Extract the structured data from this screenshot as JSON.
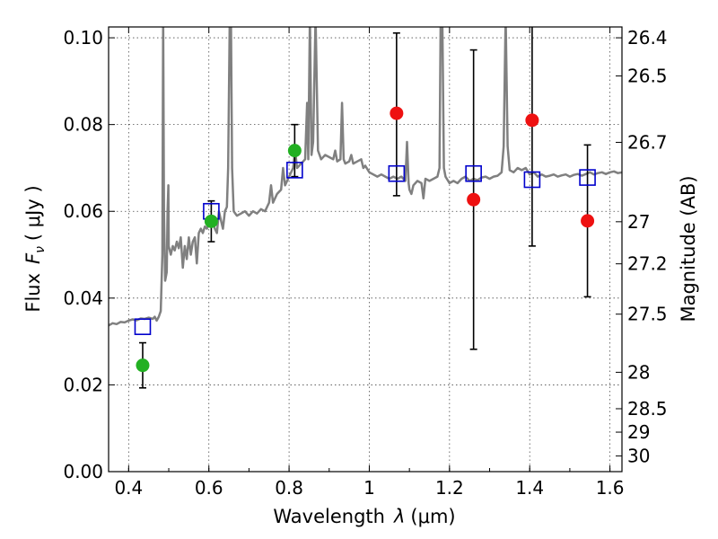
{
  "chart_data": {
    "type": "scatter",
    "xlabel": "Wavelength",
    "xlabel_symbol": "λ",
    "xlabel_unit": "(μm)",
    "ylabel": "Flux",
    "ylabel_symbol": "F",
    "ylabel_subscript": "ν",
    "ylabel_unit": "( μJy )",
    "y2label": "Magnitude (AB)",
    "xlim": [
      0.35,
      1.63
    ],
    "ylim": [
      0.0,
      0.1025
    ],
    "grid": true,
    "x_ticks": [
      0.4,
      0.6,
      0.8,
      1.0,
      1.2,
      1.4,
      1.6
    ],
    "x_tick_labels": [
      "0.4",
      "0.6",
      "0.8",
      "1",
      "1.2",
      "1.4",
      "1.6"
    ],
    "y_ticks": [
      0.0,
      0.02,
      0.04,
      0.06,
      0.08,
      0.1
    ],
    "y_tick_labels": [
      "0.00",
      "0.02",
      "0.04",
      "0.06",
      "0.08",
      "0.10"
    ],
    "y2_ticks": [
      {
        "label": "26.4",
        "flux": 0.1
      },
      {
        "label": "26.5",
        "flux": 0.0912
      },
      {
        "label": "26.7",
        "flux": 0.0759
      },
      {
        "label": "27",
        "flux": 0.0576
      },
      {
        "label": "27.2",
        "flux": 0.0479
      },
      {
        "label": "27.5",
        "flux": 0.0363
      },
      {
        "label": "28",
        "flux": 0.0229
      },
      {
        "label": "28.5",
        "flux": 0.0145
      },
      {
        "label": "29",
        "flux": 0.0091
      },
      {
        "label": "30",
        "flux": 0.0036
      }
    ],
    "series": [
      {
        "name": "green detections",
        "marker": "circle",
        "color": "#22b022",
        "points": [
          {
            "x": 0.435,
            "y": 0.0245,
            "err_low": 0.0052,
            "err_high": 0.0052
          },
          {
            "x": 0.606,
            "y": 0.0577,
            "err_low": 0.0047,
            "err_high": 0.0047
          },
          {
            "x": 0.814,
            "y": 0.074,
            "err_low": 0.006,
            "err_high": 0.006
          }
        ]
      },
      {
        "name": "red detections",
        "marker": "circle",
        "color": "#ee1111",
        "points": [
          {
            "x": 1.068,
            "y": 0.0826,
            "err_low": 0.019,
            "err_high": 0.0185
          },
          {
            "x": 1.26,
            "y": 0.0627,
            "err_low": 0.0345,
            "err_high": 0.0345
          },
          {
            "x": 1.406,
            "y": 0.081,
            "err_low": 0.029,
            "err_high": 0.029
          },
          {
            "x": 1.544,
            "y": 0.0578,
            "err_low": 0.0175,
            "err_high": 0.0175
          }
        ]
      },
      {
        "name": "model band flux",
        "marker": "open-square",
        "color": "#0000cc",
        "points": [
          {
            "x": 0.435,
            "y": 0.0334
          },
          {
            "x": 0.606,
            "y": 0.06
          },
          {
            "x": 0.814,
            "y": 0.0695
          },
          {
            "x": 1.068,
            "y": 0.0687
          },
          {
            "x": 1.26,
            "y": 0.0687
          },
          {
            "x": 1.406,
            "y": 0.0673
          },
          {
            "x": 1.544,
            "y": 0.0678
          }
        ]
      }
    ],
    "spectrum": {
      "name": "model spectrum",
      "color": "#808080",
      "points": [
        [
          0.35,
          0.0337
        ],
        [
          0.36,
          0.0342
        ],
        [
          0.37,
          0.034
        ],
        [
          0.38,
          0.0345
        ],
        [
          0.39,
          0.0344
        ],
        [
          0.4,
          0.0348
        ],
        [
          0.41,
          0.0351
        ],
        [
          0.42,
          0.0349
        ],
        [
          0.43,
          0.0353
        ],
        [
          0.44,
          0.0352
        ],
        [
          0.45,
          0.0355
        ],
        [
          0.46,
          0.0352
        ],
        [
          0.465,
          0.0357
        ],
        [
          0.47,
          0.0348
        ],
        [
          0.475,
          0.0357
        ],
        [
          0.48,
          0.037
        ],
        [
          0.484,
          0.05
        ],
        [
          0.486,
          0.105
        ],
        [
          0.488,
          0.06
        ],
        [
          0.491,
          0.044
        ],
        [
          0.495,
          0.046
        ],
        [
          0.497,
          0.06
        ],
        [
          0.499,
          0.066
        ],
        [
          0.5,
          0.052
        ],
        [
          0.505,
          0.05
        ],
        [
          0.51,
          0.052
        ],
        [
          0.515,
          0.051
        ],
        [
          0.52,
          0.053
        ],
        [
          0.525,
          0.0515
        ],
        [
          0.53,
          0.054
        ],
        [
          0.535,
          0.047
        ],
        [
          0.54,
          0.052
        ],
        [
          0.545,
          0.049
        ],
        [
          0.55,
          0.054
        ],
        [
          0.555,
          0.05
        ],
        [
          0.56,
          0.053
        ],
        [
          0.565,
          0.054
        ],
        [
          0.57,
          0.048
        ],
        [
          0.575,
          0.055
        ],
        [
          0.58,
          0.056
        ],
        [
          0.585,
          0.055
        ],
        [
          0.59,
          0.0565
        ],
        [
          0.595,
          0.056
        ],
        [
          0.6,
          0.057
        ],
        [
          0.605,
          0.0565
        ],
        [
          0.61,
          0.0575
        ],
        [
          0.615,
          0.056
        ],
        [
          0.62,
          0.055
        ],
        [
          0.625,
          0.06
        ],
        [
          0.63,
          0.058
        ],
        [
          0.635,
          0.056
        ],
        [
          0.64,
          0.06
        ],
        [
          0.645,
          0.061
        ],
        [
          0.648,
          0.07
        ],
        [
          0.652,
          0.105
        ],
        [
          0.655,
          0.105
        ],
        [
          0.658,
          0.07
        ],
        [
          0.662,
          0.06
        ],
        [
          0.67,
          0.059
        ],
        [
          0.68,
          0.0595
        ],
        [
          0.69,
          0.06
        ],
        [
          0.7,
          0.059
        ],
        [
          0.71,
          0.06
        ],
        [
          0.72,
          0.0595
        ],
        [
          0.73,
          0.0605
        ],
        [
          0.74,
          0.06
        ],
        [
          0.75,
          0.062
        ],
        [
          0.755,
          0.066
        ],
        [
          0.76,
          0.062
        ],
        [
          0.77,
          0.064
        ],
        [
          0.78,
          0.065
        ],
        [
          0.785,
          0.07
        ],
        [
          0.79,
          0.066
        ],
        [
          0.8,
          0.068
        ],
        [
          0.81,
          0.07
        ],
        [
          0.815,
          0.074
        ],
        [
          0.82,
          0.07
        ],
        [
          0.83,
          0.071
        ],
        [
          0.84,
          0.072
        ],
        [
          0.845,
          0.085
        ],
        [
          0.848,
          0.072
        ],
        [
          0.852,
          0.105
        ],
        [
          0.856,
          0.073
        ],
        [
          0.86,
          0.076
        ],
        [
          0.866,
          0.105
        ],
        [
          0.872,
          0.074
        ],
        [
          0.88,
          0.072
        ],
        [
          0.89,
          0.073
        ],
        [
          0.9,
          0.0725
        ],
        [
          0.91,
          0.072
        ],
        [
          0.915,
          0.074
        ],
        [
          0.92,
          0.0715
        ],
        [
          0.928,
          0.072
        ],
        [
          0.932,
          0.085
        ],
        [
          0.936,
          0.072
        ],
        [
          0.94,
          0.071
        ],
        [
          0.95,
          0.0715
        ],
        [
          0.955,
          0.073
        ],
        [
          0.96,
          0.071
        ],
        [
          0.97,
          0.0715
        ],
        [
          0.98,
          0.072
        ],
        [
          0.985,
          0.07
        ],
        [
          0.99,
          0.0705
        ],
        [
          1.0,
          0.069
        ],
        [
          1.01,
          0.0685
        ],
        [
          1.02,
          0.068
        ],
        [
          1.03,
          0.0685
        ],
        [
          1.04,
          0.068
        ],
        [
          1.05,
          0.0675
        ],
        [
          1.06,
          0.068
        ],
        [
          1.07,
          0.0675
        ],
        [
          1.08,
          0.068
        ],
        [
          1.09,
          0.067
        ],
        [
          1.094,
          0.076
        ],
        [
          1.098,
          0.0665
        ],
        [
          1.1,
          0.065
        ],
        [
          1.105,
          0.064
        ],
        [
          1.11,
          0.066
        ],
        [
          1.12,
          0.067
        ],
        [
          1.13,
          0.0665
        ],
        [
          1.135,
          0.063
        ],
        [
          1.14,
          0.0675
        ],
        [
          1.15,
          0.067
        ],
        [
          1.16,
          0.0675
        ],
        [
          1.17,
          0.068
        ],
        [
          1.175,
          0.07
        ],
        [
          1.178,
          0.105
        ],
        [
          1.182,
          0.105
        ],
        [
          1.186,
          0.07
        ],
        [
          1.19,
          0.068
        ],
        [
          1.2,
          0.0665
        ],
        [
          1.21,
          0.067
        ],
        [
          1.22,
          0.0665
        ],
        [
          1.23,
          0.0675
        ],
        [
          1.24,
          0.068
        ],
        [
          1.25,
          0.067
        ],
        [
          1.26,
          0.0675
        ],
        [
          1.27,
          0.0672
        ],
        [
          1.28,
          0.0678
        ],
        [
          1.29,
          0.068
        ],
        [
          1.3,
          0.0675
        ],
        [
          1.31,
          0.068
        ],
        [
          1.32,
          0.0682
        ],
        [
          1.33,
          0.069
        ],
        [
          1.335,
          0.075
        ],
        [
          1.34,
          0.105
        ],
        [
          1.345,
          0.075
        ],
        [
          1.35,
          0.0695
        ],
        [
          1.36,
          0.069
        ],
        [
          1.37,
          0.07
        ],
        [
          1.38,
          0.0695
        ],
        [
          1.39,
          0.07
        ],
        [
          1.4,
          0.0685
        ],
        [
          1.41,
          0.069
        ],
        [
          1.42,
          0.068
        ],
        [
          1.43,
          0.0685
        ],
        [
          1.44,
          0.068
        ],
        [
          1.45,
          0.0682
        ],
        [
          1.46,
          0.0685
        ],
        [
          1.47,
          0.068
        ],
        [
          1.48,
          0.0683
        ],
        [
          1.49,
          0.0685
        ],
        [
          1.5,
          0.068
        ],
        [
          1.51,
          0.0684
        ],
        [
          1.52,
          0.0686
        ],
        [
          1.53,
          0.0682
        ],
        [
          1.54,
          0.0686
        ],
        [
          1.55,
          0.069
        ],
        [
          1.56,
          0.0685
        ],
        [
          1.57,
          0.0688
        ],
        [
          1.58,
          0.069
        ],
        [
          1.59,
          0.0686
        ],
        [
          1.6,
          0.069
        ],
        [
          1.61,
          0.0692
        ],
        [
          1.62,
          0.0688
        ],
        [
          1.63,
          0.069
        ]
      ]
    }
  }
}
